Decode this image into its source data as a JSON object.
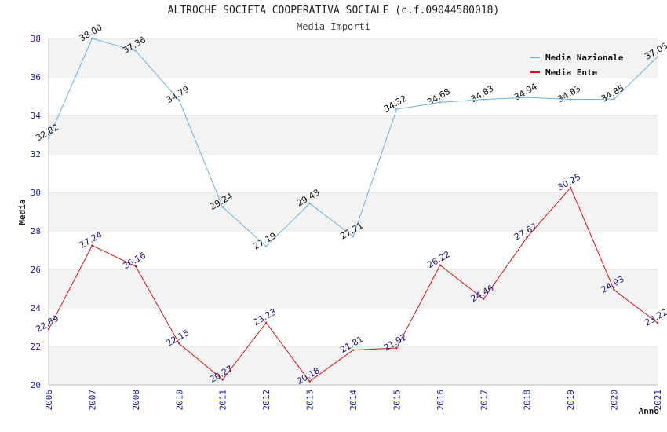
{
  "chart_data": {
    "type": "line",
    "title": "ALTROCHE SOCIETA COOPERATIVA SOCIALE (c.f.09044580018)",
    "subtitle": "Media Importi",
    "xlabel": "Anno",
    "ylabel": "Media",
    "ylim": [
      20,
      38
    ],
    "yticks": [
      20,
      22,
      24,
      26,
      28,
      30,
      32,
      34,
      36,
      38
    ],
    "grid": "horizontal bands",
    "legend_position": "top-right",
    "categories": [
      "2006",
      "2007",
      "2008",
      "2010",
      "2011",
      "2012",
      "2013",
      "2014",
      "2015",
      "2016",
      "2017",
      "2018",
      "2019",
      "2020",
      "2021"
    ],
    "series": [
      {
        "name": "Media Nazionale",
        "color": "#6aaee8",
        "label_color": "#111111",
        "values": [
          32.82,
          38.0,
          37.36,
          34.79,
          29.24,
          27.19,
          29.43,
          27.71,
          34.32,
          34.68,
          34.83,
          34.94,
          34.83,
          34.85,
          37.05
        ],
        "labels": [
          "32.82",
          "38.00",
          "37.36",
          "34.79",
          "29.24",
          "27.19",
          "29.43",
          "27.71",
          "34.32",
          "34.68",
          "34.83",
          "34.94",
          "34.83",
          "34.85",
          "37.05"
        ]
      },
      {
        "name": "Media Ente",
        "color": "#dd1111",
        "label_color": "#1a1a80",
        "values": [
          22.89,
          27.24,
          26.16,
          22.15,
          20.27,
          23.23,
          20.18,
          21.81,
          21.92,
          26.22,
          24.46,
          27.67,
          30.25,
          24.93,
          23.22
        ],
        "labels": [
          "22.89",
          "27.24",
          "26.16",
          "22.15",
          "20.27",
          "23.23",
          "20.18",
          "21.81",
          "21.92",
          "26.22",
          "24.46",
          "27.67",
          "30.25",
          "24.93",
          "23.22"
        ]
      }
    ]
  }
}
